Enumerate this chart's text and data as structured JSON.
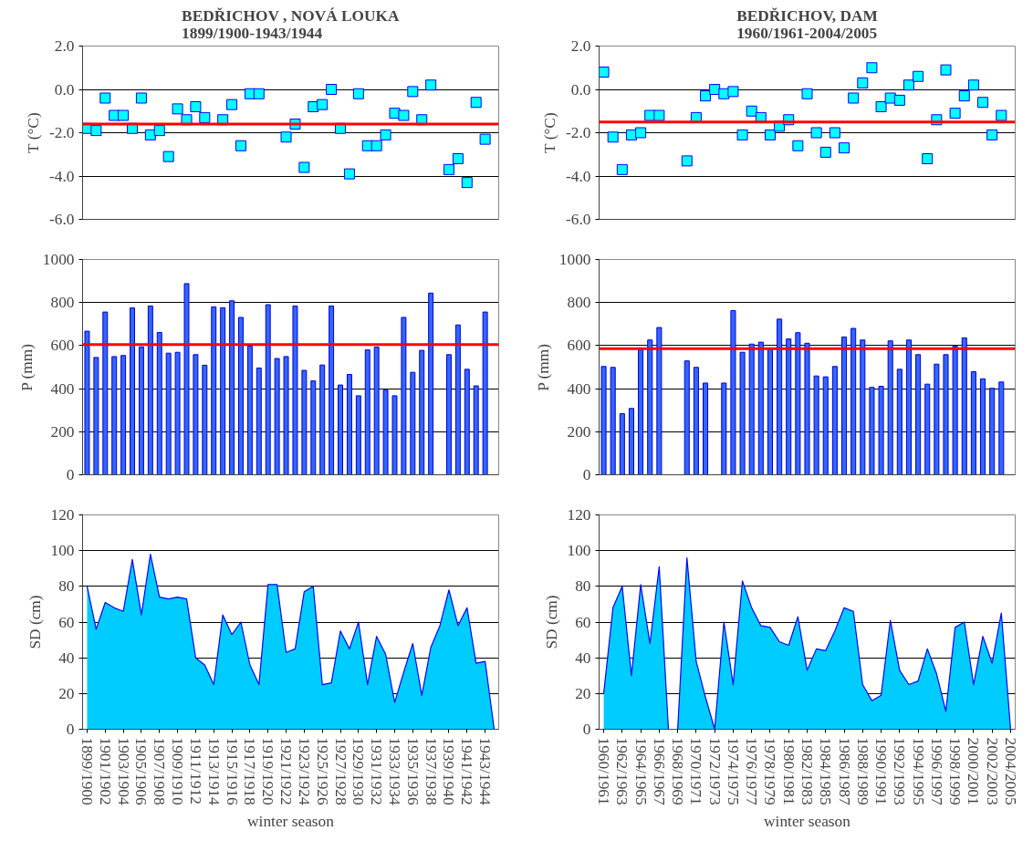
{
  "chart_data": [
    {
      "type": "scatter",
      "title": "BEDŘICHOV , NOVÁ LOUKA\n1899/1900-1943/1944",
      "ylabel": "T (°C)",
      "marker": "square",
      "grid": "y",
      "tick_labels": "y",
      "categories": [
        null,
        null,
        null,
        null,
        null,
        null,
        null,
        null,
        null,
        null,
        null,
        null,
        null,
        null,
        null,
        null,
        null,
        null,
        null,
        null,
        null,
        null,
        null,
        null,
        null,
        null,
        null,
        null,
        null,
        null,
        null,
        null,
        null,
        null,
        null,
        null,
        null,
        null,
        null,
        null,
        null,
        null,
        null,
        null,
        null,
        null
      ],
      "series": [
        {
          "color": "#00ffff",
          "values": [
            -1.8,
            -1.9,
            -0.4,
            -1.2,
            -1.2,
            -1.8,
            -0.4,
            -2.1,
            -1.9,
            -3.1,
            -0.9,
            -1.4,
            -0.8,
            -1.3,
            null,
            -1.4,
            -0.7,
            -2.6,
            -0.2,
            -0.2,
            null,
            null,
            -2.2,
            -1.6,
            -3.6,
            -0.8,
            -0.7,
            0.0,
            -1.8,
            -3.9,
            -0.2,
            -2.6,
            -2.6,
            -2.1,
            -1.1,
            -1.2,
            -0.1,
            -1.4,
            0.2,
            null,
            -3.7,
            -3.2,
            -4.3,
            -0.6,
            -2.3,
            null
          ]
        }
      ],
      "ylim": [
        -6,
        2
      ],
      "yticks": [
        {
          "value": -6,
          "label": "-6.0"
        },
        {
          "value": -4,
          "label": "-4.0"
        },
        {
          "value": -2,
          "label": "-2.0"
        },
        {
          "value": 0,
          "label": "0.0"
        },
        {
          "value": 2,
          "label": "2.0"
        }
      ],
      "ref_lines": [
        {
          "axis": "y",
          "value": -1.6,
          "color": "#ff0000"
        }
      ]
    },
    {
      "type": "scatter",
      "title": "BEDŘICHOV, DAM\n1960/1961-2004/2005",
      "ylabel": "T (°C)",
      "marker": "square",
      "grid": "y",
      "tick_labels": "y",
      "categories": [
        null,
        null,
        null,
        null,
        null,
        null,
        null,
        null,
        null,
        null,
        null,
        null,
        null,
        null,
        null,
        null,
        null,
        null,
        null,
        null,
        null,
        null,
        null,
        null,
        null,
        null,
        null,
        null,
        null,
        null,
        null,
        null,
        null,
        null,
        null,
        null,
        null,
        null,
        null,
        null,
        null,
        null,
        null,
        null,
        null
      ],
      "series": [
        {
          "color": "#00ffff",
          "values": [
            0.8,
            -2.2,
            -3.7,
            -2.1,
            -2.0,
            -1.2,
            -1.2,
            null,
            null,
            -3.3,
            -1.3,
            -0.3,
            0.0,
            -0.2,
            -0.1,
            -2.1,
            -1.0,
            -1.3,
            -2.1,
            -1.7,
            -1.4,
            -2.6,
            -0.2,
            -2.0,
            -2.9,
            -2.0,
            -2.7,
            -0.4,
            0.3,
            1.0,
            -0.8,
            -0.4,
            -0.5,
            0.2,
            0.6,
            -3.2,
            -1.4,
            0.9,
            -1.1,
            -0.3,
            0.2,
            -0.6,
            -2.1,
            -1.2,
            null
          ]
        }
      ],
      "ylim": [
        -6,
        2
      ],
      "yticks": [
        {
          "value": -6,
          "label": "-6.0"
        },
        {
          "value": -4,
          "label": "-4.0"
        },
        {
          "value": -2,
          "label": "-2.0"
        },
        {
          "value": 0,
          "label": "0.0"
        },
        {
          "value": 2,
          "label": "2.0"
        }
      ],
      "ref_lines": [
        {
          "axis": "y",
          "value": -1.5,
          "color": "#ff0000"
        }
      ]
    },
    {
      "type": "bar",
      "ylabel": "P (mm)",
      "grid": "y",
      "tick_labels": "y",
      "categories": [
        null,
        null,
        null,
        null,
        null,
        null,
        null,
        null,
        null,
        null,
        null,
        null,
        null,
        null,
        null,
        null,
        null,
        null,
        null,
        null,
        null,
        null,
        null,
        null,
        null,
        null,
        null,
        null,
        null,
        null,
        null,
        null,
        null,
        null,
        null,
        null,
        null,
        null,
        null,
        null,
        null,
        null,
        null,
        null,
        null,
        null
      ],
      "series": [
        {
          "color": "#3366ff",
          "values": [
            667,
            545,
            756,
            549,
            554,
            775,
            594,
            784,
            661,
            565,
            569,
            888,
            558,
            509,
            780,
            776,
            808,
            731,
            598,
            496,
            790,
            540,
            549,
            784,
            485,
            436,
            510,
            784,
            417,
            466,
            367,
            580,
            593,
            393,
            367,
            731,
            476,
            578,
            844,
            null,
            558,
            696,
            490,
            413,
            756,
            null
          ]
        }
      ],
      "ylim": [
        0,
        1000
      ],
      "yticks": [
        0,
        200,
        400,
        600,
        800,
        1000
      ],
      "ref_lines": [
        {
          "axis": "y",
          "value": 605,
          "color": "#ff0000"
        }
      ]
    },
    {
      "type": "bar",
      "ylabel": "P (mm)",
      "grid": "y",
      "tick_labels": "y",
      "categories": [
        null,
        null,
        null,
        null,
        null,
        null,
        null,
        null,
        null,
        null,
        null,
        null,
        null,
        null,
        null,
        null,
        null,
        null,
        null,
        null,
        null,
        null,
        null,
        null,
        null,
        null,
        null,
        null,
        null,
        null,
        null,
        null,
        null,
        null,
        null,
        null,
        null,
        null,
        null,
        null,
        null,
        null,
        null,
        null,
        null
      ],
      "series": [
        {
          "color": "#3366ff",
          "values": [
            503,
            499,
            284,
            308,
            583,
            626,
            684,
            null,
            null,
            529,
            499,
            426,
            null,
            426,
            763,
            569,
            607,
            616,
            583,
            723,
            631,
            660,
            611,
            459,
            455,
            503,
            640,
            680,
            626,
            406,
            411,
            622,
            490,
            626,
            558,
            421,
            514,
            558,
            597,
            636,
            479,
            446,
            402,
            431,
            null
          ]
        }
      ],
      "ylim": [
        0,
        1000
      ],
      "yticks": [
        0,
        200,
        400,
        600,
        800,
        1000
      ],
      "ref_lines": [
        {
          "axis": "y",
          "value": 586,
          "color": "#ff0000"
        }
      ]
    },
    {
      "type": "area",
      "ylabel": "SD (cm)",
      "xlabel": "winter season",
      "grid": "y",
      "categories": [
        "1899/1900",
        null,
        "1901/1902",
        null,
        "1903/1904",
        null,
        "1905/1906",
        null,
        "1907/1908",
        null,
        "1909/1910",
        null,
        "1911/1912",
        null,
        "1913/1914",
        null,
        "1915/1916",
        null,
        "1917/1918",
        null,
        "1919/1920",
        null,
        "1921/1922",
        null,
        "1923/1924",
        null,
        "1925/1926",
        null,
        "1927/1928",
        null,
        "1929/1930",
        null,
        "1931/1932",
        null,
        "1933/1934",
        null,
        "1935/1936",
        null,
        "1937/1938",
        null,
        "1939/1940",
        null,
        "1941/1942",
        null,
        "1943/1944",
        null
      ],
      "series": [
        {
          "color": "#00ccff",
          "values": [
            80,
            56,
            71,
            68,
            66,
            95,
            64,
            98,
            74,
            73,
            74,
            73,
            40,
            36,
            25,
            64,
            53,
            60,
            36,
            25,
            81,
            81,
            43,
            45,
            77,
            80,
            25,
            26,
            55,
            45,
            60,
            25,
            52,
            42,
            15,
            32,
            48,
            19,
            46,
            58,
            78,
            58,
            68,
            37,
            38,
            0
          ]
        }
      ],
      "ylim": [
        0,
        120
      ],
      "yticks": [
        0,
        20,
        40,
        60,
        80,
        100,
        120
      ]
    },
    {
      "type": "area",
      "ylabel": "SD (cm)",
      "xlabel": "winter season",
      "grid": "y",
      "categories": [
        "1960/1961",
        null,
        "1962/1963",
        null,
        "1964/1965",
        null,
        "1966/1967",
        null,
        "1968/1969",
        null,
        "1970/1971",
        null,
        "1972/1973",
        null,
        "1974/1975",
        null,
        "1976/1977",
        null,
        "1978/1979",
        null,
        "1980/1981",
        null,
        "1982/1983",
        null,
        "1984/1985",
        null,
        "1986/1987",
        null,
        "1988/1989",
        null,
        "1990/1991",
        null,
        "1992/1993",
        null,
        "1994/1995",
        null,
        "1996/1997",
        null,
        "1998/1999",
        null,
        "2000/2001",
        null,
        "2002/2003",
        null,
        "2004/2005"
      ],
      "series": [
        {
          "color": "#00ccff",
          "values": [
            20,
            68,
            80,
            30,
            81,
            48,
            91,
            0,
            0,
            96,
            38,
            18,
            0,
            60,
            25,
            83,
            68,
            58,
            57,
            49,
            47,
            63,
            33,
            45,
            44,
            55,
            68,
            66,
            25,
            16,
            19,
            61,
            33,
            25,
            27,
            45,
            31,
            10,
            57,
            60,
            25,
            52,
            37,
            65,
            0
          ]
        }
      ],
      "ylim": [
        0,
        120
      ],
      "yticks": [
        0,
        20,
        40,
        60,
        80,
        100,
        120
      ]
    }
  ]
}
